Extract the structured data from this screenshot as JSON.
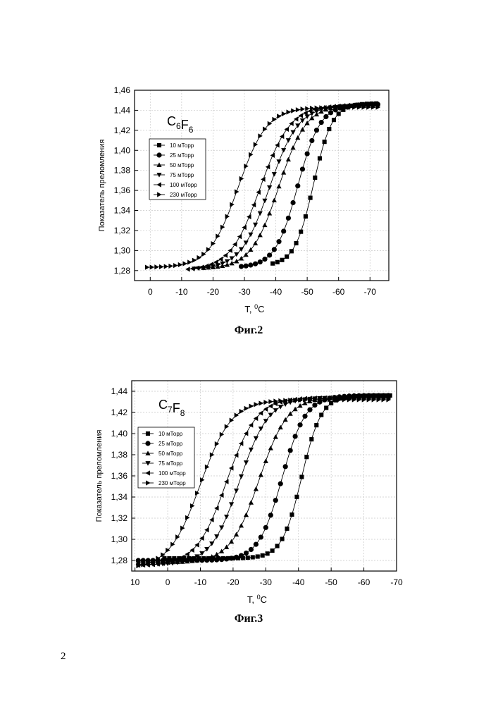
{
  "page": {
    "number": "2"
  },
  "markers": [
    "square",
    "circle",
    "triangle-up",
    "triangle-down",
    "triangle-left",
    "triangle-right"
  ],
  "chart_data": [
    {
      "type": "line",
      "caption": "Фиг.2",
      "compound": {
        "parts": [
          {
            "text": "C",
            "sub": "6"
          },
          {
            "text": "F",
            "sub": "6"
          }
        ]
      },
      "xlabel": {
        "text": "T, ",
        "sup": "0",
        "unit": "C"
      },
      "ylabel": "Показатель преломления",
      "xlim": [
        5,
        -76
      ],
      "ylim": [
        1.27,
        1.46
      ],
      "xticks": [
        0,
        -10,
        -20,
        -30,
        -40,
        -50,
        -60,
        -70
      ],
      "xtick_labels": [
        "0",
        "-10",
        "-20",
        "-30",
        "-40",
        "-50",
        "-60",
        "-70"
      ],
      "yticks": [
        1.28,
        1.3,
        1.32,
        1.34,
        1.36,
        1.38,
        1.4,
        1.42,
        1.44,
        1.46
      ],
      "ytick_labels": [
        "1,28",
        "1,30",
        "1,32",
        "1,34",
        "1,36",
        "1,38",
        "1,40",
        "1,42",
        "1,44",
        "1,46"
      ],
      "grid": true,
      "legend_position": "left",
      "series": [
        {
          "name": "10 мТорр",
          "low": 1.285,
          "high": 1.447,
          "mid": -52,
          "width": 3.0,
          "x_start": -39,
          "x_end": -73
        },
        {
          "name": "25 мТорр",
          "low": 1.283,
          "high": 1.446,
          "mid": -47,
          "width": 3.6,
          "x_start": -29,
          "x_end": -73
        },
        {
          "name": "50 мТорр",
          "low": 1.282,
          "high": 1.446,
          "mid": -41,
          "width": 4.4,
          "x_start": -17,
          "x_end": -73
        },
        {
          "name": "75 мТорр",
          "low": 1.281,
          "high": 1.445,
          "mid": -38,
          "width": 4.6,
          "x_start": -14,
          "x_end": -73
        },
        {
          "name": "100 мТорр",
          "low": 1.28,
          "high": 1.445,
          "mid": -35,
          "width": 4.8,
          "x_start": -12,
          "x_end": -73
        },
        {
          "name": "230 мТорр",
          "low": 1.283,
          "high": 1.443,
          "mid": -28,
          "width": 4.6,
          "x_start": 1,
          "x_end": -73
        }
      ]
    },
    {
      "type": "line",
      "caption": "Фиг.3",
      "compound": {
        "parts": [
          {
            "text": "C",
            "sub": "7"
          },
          {
            "text": "F",
            "sub": "8"
          }
        ]
      },
      "xlabel": {
        "text": "T, ",
        "sup": "0",
        "unit": "C"
      },
      "ylabel": "Показатель преломления",
      "xlim": [
        11,
        -70
      ],
      "ylim": [
        1.27,
        1.45
      ],
      "xticks": [
        10,
        0,
        -10,
        -20,
        -30,
        -40,
        -50,
        -60,
        -70
      ],
      "xtick_labels": [
        "10",
        "0",
        "-10",
        "-20",
        "-30",
        "-40",
        "-50",
        "-60",
        "-70"
      ],
      "yticks": [
        1.28,
        1.3,
        1.32,
        1.34,
        1.36,
        1.38,
        1.4,
        1.42,
        1.44
      ],
      "ytick_labels": [
        "1,28",
        "1,30",
        "1,32",
        "1,34",
        "1,36",
        "1,38",
        "1,40",
        "1,42",
        "1,44"
      ],
      "grid": true,
      "legend_position": "left",
      "series": [
        {
          "name": "10 мТорр",
          "low": 1.282,
          "high": 1.436,
          "mid": -41,
          "width": 3.0,
          "x_start": 1,
          "x_end": -68
        },
        {
          "name": "25 мТорр",
          "low": 1.28,
          "high": 1.436,
          "mid": -35,
          "width": 3.6,
          "x_start": 9,
          "x_end": -68
        },
        {
          "name": "50 мТорр",
          "low": 1.278,
          "high": 1.435,
          "mid": -28,
          "width": 4.4,
          "x_start": 9,
          "x_end": -68
        },
        {
          "name": "75 мТорр",
          "low": 1.276,
          "high": 1.434,
          "mid": -22,
          "width": 4.4,
          "x_start": 9,
          "x_end": -68
        },
        {
          "name": "100 мТорр",
          "low": 1.275,
          "high": 1.434,
          "mid": -18,
          "width": 4.6,
          "x_start": 9,
          "x_end": -68
        },
        {
          "name": "230 мТорр",
          "low": 1.272,
          "high": 1.432,
          "mid": -10,
          "width": 4.8,
          "x_start": 9,
          "x_end": -68
        }
      ]
    }
  ]
}
